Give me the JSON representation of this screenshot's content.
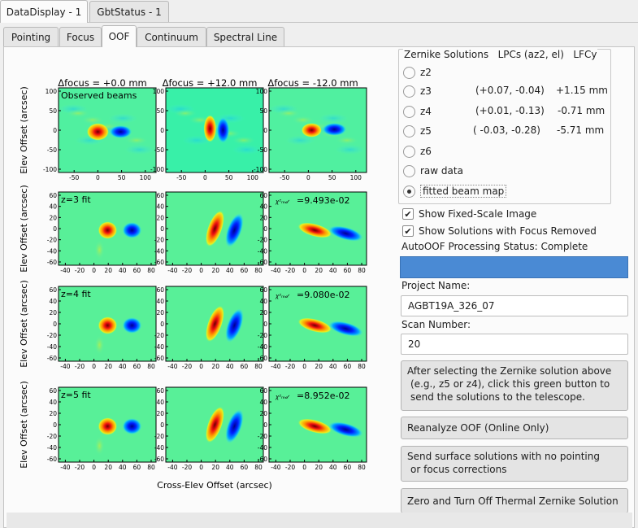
{
  "window_tabs": [
    "DataDisplay - 1",
    "GbtStatus - 1"
  ],
  "sub_tabs": [
    "Pointing",
    "Focus",
    "OOF",
    "Continuum",
    "Spectral Line"
  ],
  "figure": {
    "col_titles": [
      "Δfocus = +0.0 mm",
      "Δfocus = +12.0 mm",
      "Δfocus = -12.0 mm"
    ],
    "row_labels": [
      "Observed beams",
      "z=3 fit",
      "z=4 fit",
      "z=5 fit"
    ],
    "chi_labels": [
      "=9.493e-02",
      "=9.080e-02",
      "=8.952e-02"
    ],
    "ylabel": "Elev Offset (arcsec)",
    "xlabel": "Cross-Elev Offset (arcsec)",
    "obs_y_ticks": [
      "100",
      "50",
      "0",
      "-50",
      "-100"
    ],
    "obs_x_ticks": [
      "-50",
      "0",
      "50",
      "100"
    ],
    "fit_y_ticks": [
      "60",
      "40",
      "20",
      "0",
      "-20",
      "-40",
      "-60"
    ],
    "fit_x_ticks": [
      "-40",
      "-20",
      "0",
      "20",
      "40",
      "60",
      "80"
    ]
  },
  "zernike": {
    "header": "Zernike Solutions   LPCs (az2, el)   LFCy",
    "options": [
      {
        "label": "z2",
        "lpc": "",
        "lfc": "",
        "selected": false
      },
      {
        "label": "z3",
        "lpc": "(+0.07, -0.04)",
        "lfc": "+1.15 mm",
        "selected": false
      },
      {
        "label": "z4",
        "lpc": "(+0.01, -0.13)",
        "lfc": "-0.71 mm",
        "selected": false
      },
      {
        "label": "z5",
        "lpc": "( -0.03, -0.28)",
        "lfc": "-5.71 mm",
        "selected": false
      },
      {
        "label": "z6",
        "lpc": "",
        "lfc": "",
        "selected": false
      },
      {
        "label": "raw data",
        "lpc": "",
        "lfc": "",
        "selected": false
      },
      {
        "label": "fitted beam map",
        "lpc": "",
        "lfc": "",
        "selected": true
      }
    ]
  },
  "checks": [
    {
      "label": "Show Fixed-Scale Image",
      "checked": true
    },
    {
      "label": "Show Solutions with Focus Removed",
      "checked": true
    }
  ],
  "status_label": "AutoOOF Processing Status: Complete",
  "status_color": "#4a8ad4",
  "project": {
    "label": "Project Name:",
    "value": "AGBT19A_326_07"
  },
  "scan": {
    "label": "Scan Number:",
    "value": "20"
  },
  "buttons": {
    "send_line1": "After selecting the Zernike solution above",
    "send_line2": "(e.g., z5 or z4), click this green button to",
    "send_line3": "send the solutions to the telescope.",
    "reanalyze": "Reanalyze OOF (Online Only)",
    "surface_line1": "Send surface solutions with no pointing",
    "surface_line2": "or focus corrections",
    "zero": "Zero and Turn Off Thermal Zernike Solution"
  }
}
